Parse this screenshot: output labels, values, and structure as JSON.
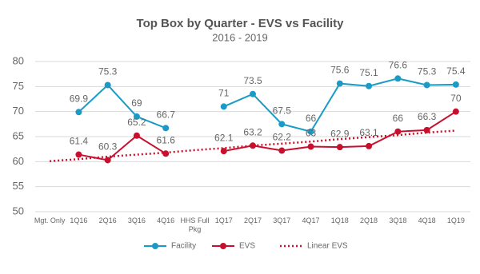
{
  "chart_data": {
    "type": "line",
    "title": "Top Box by Quarter - EVS vs Facility",
    "subtitle": "2016 - 2019",
    "categories": [
      "Mgt. Only",
      "1Q16",
      "2Q16",
      "3Q16",
      "4Q16",
      "HHS Full Pkg",
      "1Q17",
      "2Q17",
      "3Q17",
      "4Q17",
      "1Q18",
      "2Q18",
      "3Q18",
      "4Q18",
      "1Q19"
    ],
    "series": [
      {
        "name": "Facility",
        "color": "#1a9bc7",
        "markers": true,
        "data_labels": true,
        "values": [
          null,
          69.9,
          75.3,
          69,
          66.7,
          null,
          71,
          73.5,
          67.5,
          66,
          75.6,
          75.1,
          76.6,
          75.3,
          75.4
        ]
      },
      {
        "name": "EVS",
        "color": "#c8102e",
        "markers": true,
        "data_labels": true,
        "values": [
          null,
          61.4,
          60.3,
          65.2,
          61.6,
          null,
          62.1,
          63.2,
          62.2,
          63,
          62.9,
          63.1,
          66,
          66.3,
          70
        ]
      },
      {
        "name": "Linear EVS",
        "color": "#c8102e",
        "markers": false,
        "data_labels": false,
        "line_style": "dotted",
        "values": [
          60.1,
          60.5,
          61.0,
          61.4,
          61.8,
          62.3,
          62.7,
          63.2,
          63.6,
          64.0,
          64.5,
          64.9,
          65.3,
          65.8,
          66.2
        ]
      }
    ],
    "ylim": [
      50,
      80
    ],
    "yticks": [
      50,
      55,
      60,
      65,
      70,
      75,
      80
    ],
    "grid": true,
    "legend": "bottom"
  }
}
